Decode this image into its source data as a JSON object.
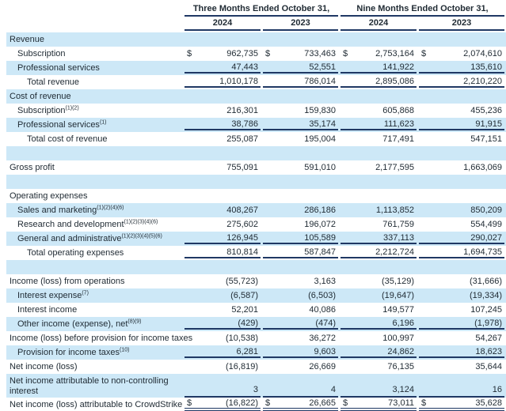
{
  "colors": {
    "stripe": "#cde8f7",
    "rule": "#1f3864",
    "text": "#1f2a33"
  },
  "currency_symbol": "$",
  "header": {
    "groups": [
      "Three Months Ended October 31,",
      "Nine Months Ended October 31,"
    ],
    "years": [
      "2024",
      "2023",
      "2024",
      "2023"
    ]
  },
  "rows": [
    {
      "label": "Revenue",
      "sup": "",
      "indent": 0,
      "dollar": false,
      "values": null,
      "rule": "none"
    },
    {
      "label": "Subscription",
      "sup": "",
      "indent": 1,
      "dollar": true,
      "values": [
        "962,735",
        "733,463",
        "2,753,164",
        "2,074,610"
      ],
      "rule": "none"
    },
    {
      "label": "Professional services",
      "sup": "",
      "indent": 1,
      "dollar": false,
      "values": [
        "47,443",
        "52,551",
        "141,922",
        "135,610"
      ],
      "rule": "single"
    },
    {
      "label": "Total revenue",
      "sup": "",
      "indent": 2,
      "dollar": false,
      "values": [
        "1,010,178",
        "786,014",
        "2,895,086",
        "2,210,220"
      ],
      "rule": "single"
    },
    {
      "label": "Cost of revenue",
      "sup": "",
      "indent": 0,
      "dollar": false,
      "values": null,
      "rule": "none"
    },
    {
      "label": "Subscription",
      "sup": "(1)(2)",
      "indent": 1,
      "dollar": false,
      "values": [
        "216,301",
        "159,830",
        "605,868",
        "455,236"
      ],
      "rule": "none"
    },
    {
      "label": "Professional services",
      "sup": "(1)",
      "indent": 1,
      "dollar": false,
      "values": [
        "38,786",
        "35,174",
        "111,623",
        "91,915"
      ],
      "rule": "single"
    },
    {
      "label": "Total cost of revenue",
      "sup": "",
      "indent": 2,
      "dollar": false,
      "values": [
        "255,087",
        "195,004",
        "717,491",
        "547,151"
      ],
      "rule": "none"
    },
    {
      "label": "",
      "sup": "",
      "indent": 0,
      "dollar": false,
      "values": null,
      "rule": "none"
    },
    {
      "label": "Gross profit",
      "sup": "",
      "indent": 0,
      "dollar": false,
      "values": [
        "755,091",
        "591,010",
        "2,177,595",
        "1,663,069"
      ],
      "rule": "none"
    },
    {
      "label": "",
      "sup": "",
      "indent": 0,
      "dollar": false,
      "values": null,
      "rule": "none"
    },
    {
      "label": "Operating expenses",
      "sup": "",
      "indent": 0,
      "dollar": false,
      "values": null,
      "rule": "none"
    },
    {
      "label": "Sales and marketing",
      "sup": "(1)(2)(4)(6)",
      "indent": 1,
      "dollar": false,
      "values": [
        "408,267",
        "286,186",
        "1,113,852",
        "850,209"
      ],
      "rule": "none"
    },
    {
      "label": "Research and development",
      "sup": "(1)(2)(3)(4)(6)",
      "indent": 1,
      "dollar": false,
      "values": [
        "275,602",
        "196,072",
        "761,759",
        "554,499"
      ],
      "rule": "none"
    },
    {
      "label": "General and administrative",
      "sup": "(1)(2)(3)(4)(5)(6)",
      "indent": 1,
      "dollar": false,
      "values": [
        "126,945",
        "105,589",
        "337,113",
        "290,027"
      ],
      "rule": "single"
    },
    {
      "label": "Total operating expenses",
      "sup": "",
      "indent": 2,
      "dollar": false,
      "values": [
        "810,814",
        "587,847",
        "2,212,724",
        "1,694,735"
      ],
      "rule": "single"
    },
    {
      "label": "",
      "sup": "",
      "indent": 0,
      "dollar": false,
      "values": null,
      "rule": "none"
    },
    {
      "label": "Income (loss) from operations",
      "sup": "",
      "indent": 0,
      "dollar": false,
      "values": [
        "(55,723)",
        "3,163",
        "(35,129)",
        "(31,666)"
      ],
      "rule": "none"
    },
    {
      "label": "Interest expense",
      "sup": "(7)",
      "indent": 1,
      "dollar": false,
      "values": [
        "(6,587)",
        "(6,503)",
        "(19,647)",
        "(19,334)"
      ],
      "rule": "none"
    },
    {
      "label": "Interest income",
      "sup": "",
      "indent": 1,
      "dollar": false,
      "values": [
        "52,201",
        "40,086",
        "149,577",
        "107,245"
      ],
      "rule": "none"
    },
    {
      "label": "Other income (expense), net",
      "sup": "(8)(9)",
      "indent": 1,
      "dollar": false,
      "values": [
        "(429)",
        "(474)",
        "6,196",
        "(1,978)"
      ],
      "rule": "single"
    },
    {
      "label": "Income (loss) before provision for income taxes",
      "sup": "",
      "indent": 0,
      "dollar": false,
      "values": [
        "(10,538)",
        "36,272",
        "100,997",
        "54,267"
      ],
      "rule": "none"
    },
    {
      "label": "Provision for income taxes",
      "sup": "(10)",
      "indent": 1,
      "dollar": false,
      "values": [
        "6,281",
        "9,603",
        "24,862",
        "18,623"
      ],
      "rule": "single"
    },
    {
      "label": "Net income (loss)",
      "sup": "",
      "indent": 0,
      "dollar": false,
      "values": [
        "(16,819)",
        "26,669",
        "76,135",
        "35,644"
      ],
      "rule": "none"
    },
    {
      "label": "Net income attributable to non-controlling interest",
      "sup": "",
      "indent": 0,
      "dollar": false,
      "values": [
        "3",
        "4",
        "3,124",
        "16"
      ],
      "rule": "single",
      "wrap": true
    },
    {
      "label": "Net income (loss) attributable to CrowdStrike",
      "sup": "",
      "indent": 0,
      "dollar": true,
      "values": [
        "(16,822)",
        "26,665",
        "73,011",
        "35,628"
      ],
      "rule": "double"
    }
  ]
}
